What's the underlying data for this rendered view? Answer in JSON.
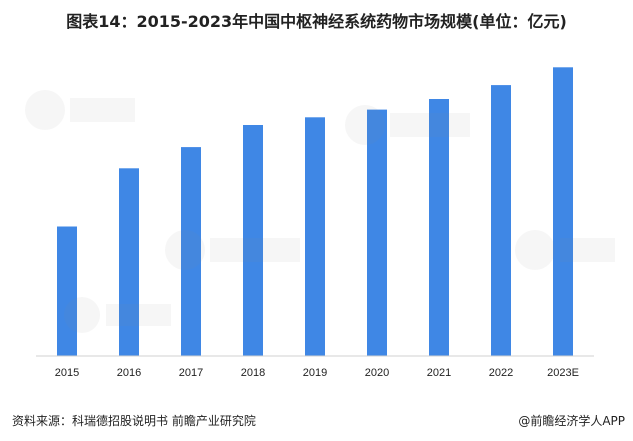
{
  "chart_data": {
    "type": "bar",
    "title": "图表14：2015-2023年中国中枢神经系统药物市场规模(单位：亿元)",
    "categories": [
      "2015",
      "2016",
      "2017",
      "2018",
      "2019",
      "2020",
      "2021",
      "2022",
      "2023E"
    ],
    "values": [
      1345,
      1950,
      2170,
      2400,
      2480,
      2560,
      2670,
      2815,
      3000
    ],
    "ylim": [
      0,
      3200
    ],
    "grid": false,
    "bar_color": "#3f87e5"
  },
  "footer": {
    "source": "资料来源：科瑞德招股说明书 前瞻产业研究院",
    "credit": "@前瞻经济学人APP"
  },
  "watermark": {
    "text": "前瞻产业研究院"
  }
}
